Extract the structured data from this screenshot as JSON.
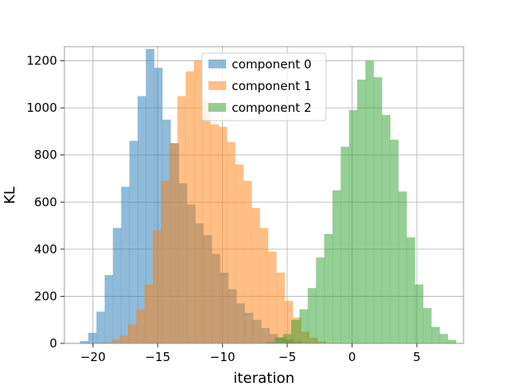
{
  "chart_data": {
    "type": "histogram",
    "xlabel": "iteration",
    "ylabel": "KL",
    "xlim": [
      -22.2,
      8.6
    ],
    "ylim": [
      0,
      1260
    ],
    "xticks": [
      -20,
      -15,
      -10,
      -5,
      0,
      5
    ],
    "xtick_labels": [
      "−20",
      "−15",
      "−10",
      "−5",
      "0",
      "5"
    ],
    "yticks": [
      0,
      200,
      400,
      600,
      800,
      1000,
      1200
    ],
    "ytick_labels": [
      "0",
      "200",
      "400",
      "600",
      "800",
      "1000",
      "1200"
    ],
    "grid": true,
    "legend_position": "top-center",
    "series": [
      {
        "name": "component 0",
        "color": "#1f77b4",
        "alpha": 0.5,
        "bin_start": -21.0,
        "bin_width": 0.636,
        "values": [
          10,
          45,
          135,
          290,
          490,
          665,
          860,
          1050,
          1250,
          1170,
          950,
          850,
          680,
          590,
          510,
          460,
          380,
          300,
          230,
          170,
          130,
          100,
          65,
          40,
          25,
          15,
          8
        ]
      },
      {
        "name": "component 1",
        "color": "#ff7f0e",
        "alpha": 0.5,
        "bin_start": -19.2,
        "bin_width": 0.636,
        "values": [
          5,
          15,
          35,
          80,
          145,
          250,
          480,
          690,
          850,
          1050,
          1155,
          1200,
          1030,
          930,
          920,
          855,
          760,
          690,
          575,
          490,
          390,
          300,
          180,
          110,
          50,
          25,
          8
        ]
      },
      {
        "name": "component 2",
        "color": "#2ca02c",
        "alpha": 0.5,
        "bin_start": -6.6,
        "bin_width": 0.636,
        "values": [
          5,
          25,
          40,
          100,
          145,
          235,
          365,
          465,
          650,
          835,
          990,
          1120,
          1200,
          1130,
          970,
          865,
          645,
          450,
          250,
          150,
          70,
          40,
          15
        ]
      }
    ]
  }
}
